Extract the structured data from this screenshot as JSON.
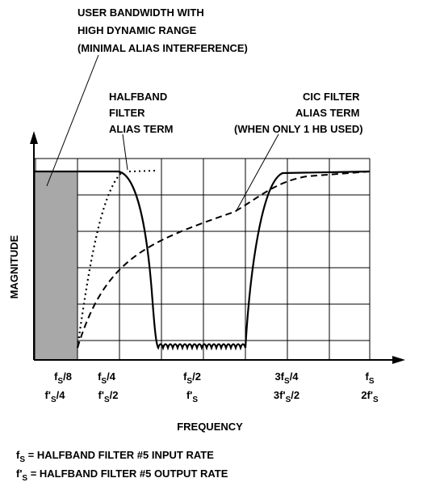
{
  "annotations": {
    "user_bandwidth": [
      "USER BANDWIDTH WITH",
      "HIGH DYNAMIC RANGE",
      "(MINIMAL ALIAS INTERFERENCE)"
    ],
    "halfband": [
      "HALFBAND",
      "FILTER",
      "ALIAS TERM"
    ],
    "cic": [
      "CIC FILTER",
      "ALIAS TERM",
      "(WHEN ONLY 1 HB USED)"
    ]
  },
  "axes": {
    "y_label": "MAGNITUDE",
    "x_label": "FREQUENCY"
  },
  "ticks_top": [
    {
      "pre": "f",
      "sub": "S",
      "post": "/8"
    },
    {
      "pre": "f",
      "sub": "S",
      "post": "/4"
    },
    {
      "pre": "f",
      "sub": "S",
      "post": "/2"
    },
    {
      "pre": "3f",
      "sub": "S",
      "post": "/4"
    },
    {
      "pre": "f",
      "sub": "S"
    }
  ],
  "ticks_bottom": [
    {
      "pre": "f'",
      "sub": "S",
      "post": "/4"
    },
    {
      "pre": "f'",
      "sub": "S",
      "post": "/2"
    },
    {
      "pre": "f'",
      "sub": "S"
    },
    {
      "pre": "3f'",
      "sub": "S",
      "post": "/2"
    },
    {
      "pre": "2f'",
      "sub": "S"
    }
  ],
  "footnotes": [
    {
      "pre": "f",
      "sub": "S",
      "post": " = HALFBAND FILTER #5 INPUT RATE"
    },
    {
      "pre": "f'",
      "sub": "S",
      "post": " = HALFBAND FILTER #5 OUTPUT RATE"
    }
  ]
}
